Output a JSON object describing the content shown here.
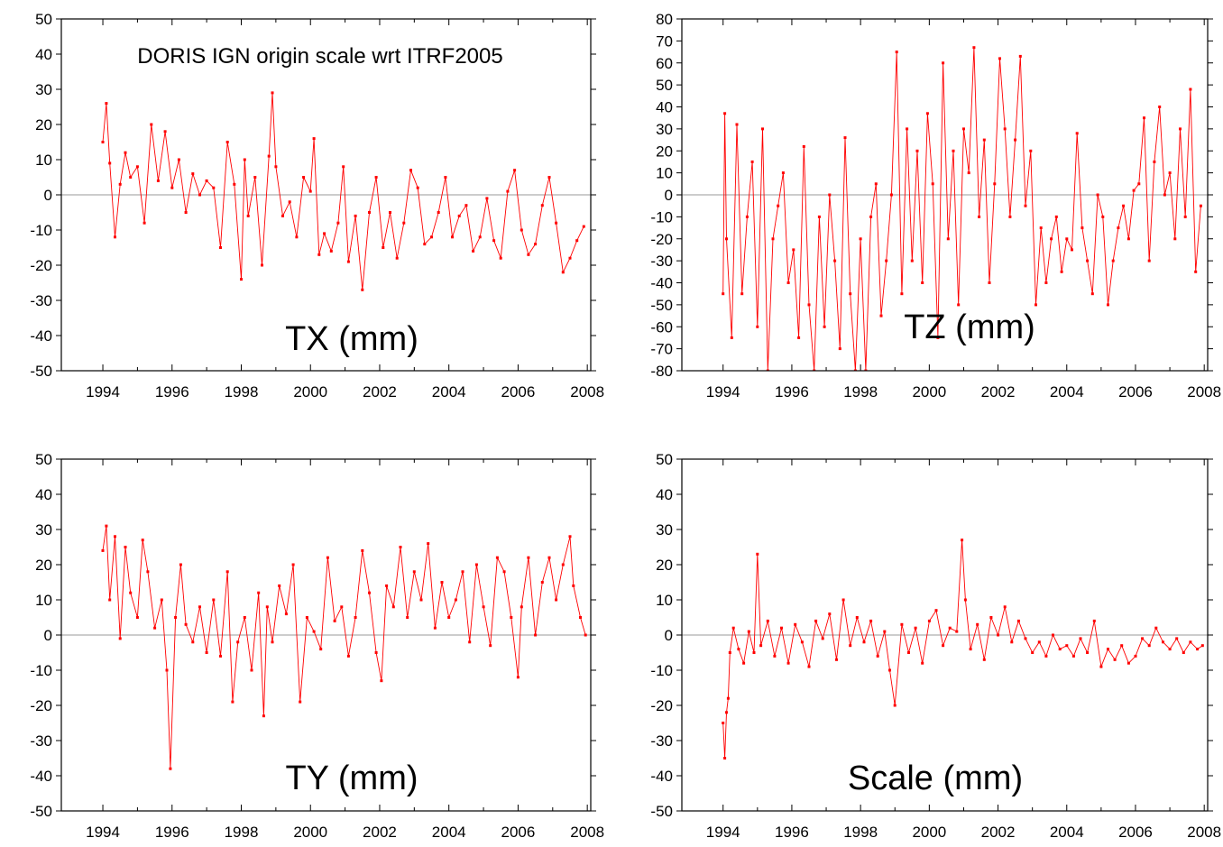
{
  "chart_data": [
    {
      "type": "line",
      "panel": "top-left",
      "label": "TX (mm)",
      "annotation": "DORIS IGN origin scale wrt ITRF2005",
      "xlim": [
        1992.8,
        2008.1
      ],
      "ylim": [
        -50,
        50
      ],
      "xticks": [
        "1994",
        "1996",
        "1998",
        "2000",
        "2002",
        "2004",
        "2006",
        "2008"
      ],
      "yticks": [
        "50",
        "40",
        "30",
        "20",
        "10",
        "0",
        "-10",
        "-20",
        "-30",
        "-40",
        "-50"
      ],
      "zero_line": true,
      "series_color": "#ff0000",
      "series": {
        "x": [
          1994.0,
          1994.1,
          1994.2,
          1994.35,
          1994.5,
          1994.65,
          1994.8,
          1995.0,
          1995.2,
          1995.4,
          1995.6,
          1995.8,
          1996.0,
          1996.2,
          1996.4,
          1996.6,
          1996.8,
          1997.0,
          1997.2,
          1997.4,
          1997.6,
          1997.8,
          1998.0,
          1998.1,
          1998.2,
          1998.4,
          1998.6,
          1998.8,
          1998.9,
          1999.0,
          1999.2,
          1999.4,
          1999.6,
          1999.8,
          2000.0,
          2000.1,
          2000.25,
          2000.4,
          2000.6,
          2000.8,
          2000.95,
          2001.1,
          2001.3,
          2001.5,
          2001.7,
          2001.9,
          2002.1,
          2002.3,
          2002.5,
          2002.7,
          2002.9,
          2003.1,
          2003.3,
          2003.5,
          2003.7,
          2003.9,
          2004.1,
          2004.3,
          2004.5,
          2004.7,
          2004.9,
          2005.1,
          2005.3,
          2005.5,
          2005.7,
          2005.9,
          2006.1,
          2006.3,
          2006.5,
          2006.7,
          2006.9,
          2007.1,
          2007.3,
          2007.5,
          2007.7,
          2007.9
        ],
        "y": [
          15,
          26,
          9,
          -12,
          3,
          12,
          5,
          8,
          -8,
          20,
          4,
          18,
          2,
          10,
          -5,
          6,
          0,
          4,
          2,
          -15,
          15,
          3,
          -24,
          10,
          -6,
          5,
          -20,
          11,
          29,
          8,
          -6,
          -2,
          -12,
          5,
          1,
          16,
          -17,
          -11,
          -16,
          -8,
          8,
          -19,
          -6,
          -27,
          -5,
          5,
          -15,
          -5,
          -18,
          -8,
          7,
          2,
          -14,
          -12,
          -5,
          5,
          -12,
          -6,
          -3,
          -16,
          -12,
          -1,
          -13,
          -18,
          1,
          7,
          -10,
          -17,
          -14,
          -3,
          5,
          -8,
          -22,
          -18,
          -13,
          -9
        ]
      }
    },
    {
      "type": "line",
      "panel": "top-right",
      "label": "TZ (mm)",
      "xlim": [
        1992.8,
        2008.1
      ],
      "ylim": [
        -80,
        80
      ],
      "xticks": [
        "1994",
        "1996",
        "1998",
        "2000",
        "2002",
        "2004",
        "2006",
        "2008"
      ],
      "yticks": [
        "80",
        "70",
        "60",
        "50",
        "40",
        "30",
        "20",
        "10",
        "0",
        "-10",
        "-20",
        "-30",
        "-40",
        "-50",
        "-60",
        "-70",
        "-80"
      ],
      "zero_line": true,
      "series_color": "#ff0000",
      "series": {
        "x": [
          1994.0,
          1994.05,
          1994.1,
          1994.25,
          1994.4,
          1994.55,
          1994.7,
          1994.85,
          1995.0,
          1995.15,
          1995.3,
          1995.45,
          1995.6,
          1995.75,
          1995.9,
          1996.05,
          1996.2,
          1996.35,
          1996.5,
          1996.65,
          1996.8,
          1996.95,
          1997.1,
          1997.25,
          1997.4,
          1997.55,
          1997.7,
          1997.85,
          1998.0,
          1998.15,
          1998.3,
          1998.45,
          1998.6,
          1998.75,
          1998.9,
          1999.05,
          1999.2,
          1999.35,
          1999.5,
          1999.65,
          1999.8,
          1999.95,
          2000.1,
          2000.25,
          2000.4,
          2000.55,
          2000.7,
          2000.85,
          2001.0,
          2001.15,
          2001.3,
          2001.45,
          2001.6,
          2001.75,
          2001.9,
          2002.05,
          2002.2,
          2002.35,
          2002.5,
          2002.65,
          2002.8,
          2002.95,
          2003.1,
          2003.25,
          2003.4,
          2003.55,
          2003.7,
          2003.85,
          2004.0,
          2004.15,
          2004.3,
          2004.45,
          2004.6,
          2004.75,
          2004.9,
          2005.05,
          2005.2,
          2005.35,
          2005.5,
          2005.65,
          2005.8,
          2005.95,
          2006.1,
          2006.25,
          2006.4,
          2006.55,
          2006.7,
          2006.85,
          2007.0,
          2007.15,
          2007.3,
          2007.45,
          2007.6,
          2007.75,
          2007.9
        ],
        "y": [
          -45,
          37,
          -20,
          -65,
          32,
          -45,
          -10,
          15,
          -60,
          30,
          -80,
          -20,
          -5,
          10,
          -40,
          -25,
          -65,
          22,
          -50,
          -80,
          -10,
          -60,
          0,
          -30,
          -70,
          26,
          -45,
          -80,
          -20,
          -80,
          -10,
          5,
          -55,
          -30,
          0,
          65,
          -45,
          30,
          -30,
          20,
          -40,
          37,
          5,
          -65,
          60,
          -20,
          20,
          -50,
          30,
          10,
          67,
          -10,
          25,
          -40,
          5,
          62,
          30,
          -10,
          25,
          63,
          -5,
          20,
          -50,
          -15,
          -40,
          -20,
          -10,
          -35,
          -20,
          -25,
          28,
          -15,
          -30,
          -45,
          0,
          -10,
          -50,
          -30,
          -15,
          -5,
          -20,
          2,
          5,
          35,
          -30,
          15,
          40,
          0,
          10,
          -20,
          30,
          -10,
          48,
          -35,
          -5
        ]
      }
    },
    {
      "type": "line",
      "panel": "bottom-left",
      "label": "TY (mm)",
      "xlim": [
        1992.8,
        2008.1
      ],
      "ylim": [
        -50,
        50
      ],
      "xticks": [
        "1994",
        "1996",
        "1998",
        "2000",
        "2002",
        "2004",
        "2006",
        "2008"
      ],
      "yticks": [
        "50",
        "40",
        "30",
        "20",
        "10",
        "0",
        "-10",
        "-20",
        "-30",
        "-40",
        "-50"
      ],
      "zero_line": true,
      "series_color": "#ff0000",
      "series": {
        "x": [
          1994.0,
          1994.1,
          1994.2,
          1994.35,
          1994.5,
          1994.65,
          1994.8,
          1995.0,
          1995.15,
          1995.3,
          1995.5,
          1995.7,
          1995.85,
          1995.95,
          1996.1,
          1996.25,
          1996.4,
          1996.6,
          1996.8,
          1997.0,
          1997.2,
          1997.4,
          1997.6,
          1997.75,
          1997.9,
          1998.1,
          1998.3,
          1998.5,
          1998.65,
          1998.75,
          1998.9,
          1999.1,
          1999.3,
          1999.5,
          1999.7,
          1999.9,
          2000.1,
          2000.3,
          2000.5,
          2000.7,
          2000.9,
          2001.1,
          2001.3,
          2001.5,
          2001.7,
          2001.9,
          2002.05,
          2002.2,
          2002.4,
          2002.6,
          2002.8,
          2003.0,
          2003.2,
          2003.4,
          2003.6,
          2003.8,
          2004.0,
          2004.2,
          2004.4,
          2004.6,
          2004.8,
          2005.0,
          2005.2,
          2005.4,
          2005.6,
          2005.8,
          2006.0,
          2006.1,
          2006.3,
          2006.5,
          2006.7,
          2006.9,
          2007.1,
          2007.3,
          2007.5,
          2007.6,
          2007.8,
          2007.95
        ],
        "y": [
          24,
          31,
          10,
          28,
          -1,
          25,
          12,
          5,
          27,
          18,
          2,
          10,
          -10,
          -38,
          5,
          20,
          3,
          -2,
          8,
          -5,
          10,
          -6,
          18,
          -19,
          -2,
          5,
          -10,
          12,
          -23,
          8,
          -2,
          14,
          6,
          20,
          -19,
          5,
          1,
          -4,
          22,
          4,
          8,
          -6,
          5,
          24,
          12,
          -5,
          -13,
          14,
          8,
          25,
          5,
          18,
          10,
          26,
          2,
          15,
          5,
          10,
          18,
          -2,
          20,
          8,
          -3,
          22,
          18,
          5,
          -12,
          8,
          22,
          0,
          15,
          22,
          10,
          20,
          28,
          14,
          5,
          0
        ]
      }
    },
    {
      "type": "line",
      "panel": "bottom-right",
      "label": "Scale (mm)",
      "xlim": [
        1992.8,
        2008.1
      ],
      "ylim": [
        -50,
        50
      ],
      "xticks": [
        "1994",
        "1996",
        "1998",
        "2000",
        "2002",
        "2004",
        "2006",
        "2008"
      ],
      "yticks": [
        "50",
        "40",
        "30",
        "20",
        "10",
        "0",
        "-10",
        "-20",
        "-30",
        "-40",
        "-50"
      ],
      "zero_line": true,
      "series_color": "#ff0000",
      "series": {
        "x": [
          1994.0,
          1994.05,
          1994.1,
          1994.15,
          1994.2,
          1994.3,
          1994.45,
          1994.6,
          1994.75,
          1994.9,
          1995.0,
          1995.1,
          1995.3,
          1995.5,
          1995.7,
          1995.9,
          1996.1,
          1996.3,
          1996.5,
          1996.7,
          1996.9,
          1997.1,
          1997.3,
          1997.5,
          1997.7,
          1997.9,
          1998.1,
          1998.3,
          1998.5,
          1998.7,
          1998.85,
          1999.0,
          1999.2,
          1999.4,
          1999.6,
          1999.8,
          2000.0,
          2000.2,
          2000.4,
          2000.6,
          2000.8,
          2000.95,
          2001.05,
          2001.2,
          2001.4,
          2001.6,
          2001.8,
          2002.0,
          2002.2,
          2002.4,
          2002.6,
          2002.8,
          2003.0,
          2003.2,
          2003.4,
          2003.6,
          2003.8,
          2004.0,
          2004.2,
          2004.4,
          2004.6,
          2004.8,
          2005.0,
          2005.2,
          2005.4,
          2005.6,
          2005.8,
          2006.0,
          2006.2,
          2006.4,
          2006.6,
          2006.8,
          2007.0,
          2007.2,
          2007.4,
          2007.6,
          2007.8,
          2007.95
        ],
        "y": [
          -25,
          -35,
          -22,
          -18,
          -5,
          2,
          -4,
          -8,
          1,
          -5,
          23,
          -3,
          4,
          -6,
          2,
          -8,
          3,
          -2,
          -9,
          4,
          -1,
          6,
          -7,
          10,
          -3,
          5,
          -2,
          4,
          -6,
          1,
          -10,
          -20,
          3,
          -5,
          2,
          -8,
          4,
          7,
          -3,
          2,
          1,
          27,
          10,
          -4,
          3,
          -7,
          5,
          0,
          8,
          -2,
          4,
          -1,
          -5,
          -2,
          -6,
          0,
          -4,
          -3,
          -6,
          -1,
          -5,
          4,
          -9,
          -4,
          -7,
          -3,
          -8,
          -6,
          -1,
          -3,
          2,
          -2,
          -4,
          -1,
          -5,
          -2,
          -4,
          -3
        ]
      }
    }
  ]
}
